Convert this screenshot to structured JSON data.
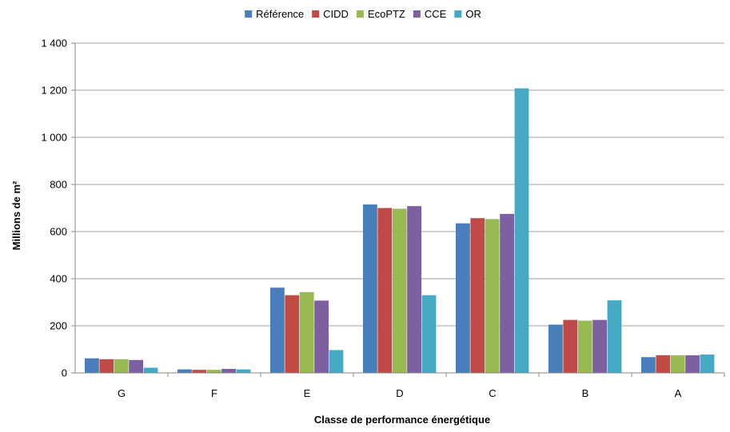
{
  "chart_data": {
    "type": "bar",
    "title": "",
    "xlabel": "Classe de performance énergétique",
    "ylabel": "Millions de m²",
    "ylim": [
      0,
      1400
    ],
    "yticks": [
      0,
      200,
      400,
      600,
      800,
      1000,
      1200,
      1400
    ],
    "ytick_labels": [
      "0",
      "200",
      "400",
      "600",
      "800",
      "1 000",
      "1 200",
      "1 400"
    ],
    "categories": [
      "G",
      "F",
      "E",
      "D",
      "C",
      "B",
      "A"
    ],
    "grid": "horizontal",
    "legend_position": "top",
    "series": [
      {
        "name": "Référence",
        "color": "#4a7ebb",
        "values": [
          62,
          15,
          362,
          715,
          635,
          205,
          67
        ]
      },
      {
        "name": "CIDD",
        "color": "#be4b48",
        "values": [
          58,
          13,
          330,
          700,
          657,
          225,
          75
        ]
      },
      {
        "name": "EcoPTZ",
        "color": "#98b954",
        "values": [
          58,
          13,
          343,
          697,
          653,
          222,
          75
        ]
      },
      {
        "name": "CCE",
        "color": "#7d60a0",
        "values": [
          55,
          17,
          307,
          708,
          675,
          225,
          75
        ]
      },
      {
        "name": "OR",
        "color": "#46aac5",
        "values": [
          22,
          15,
          97,
          330,
          1208,
          308,
          78
        ]
      }
    ]
  }
}
